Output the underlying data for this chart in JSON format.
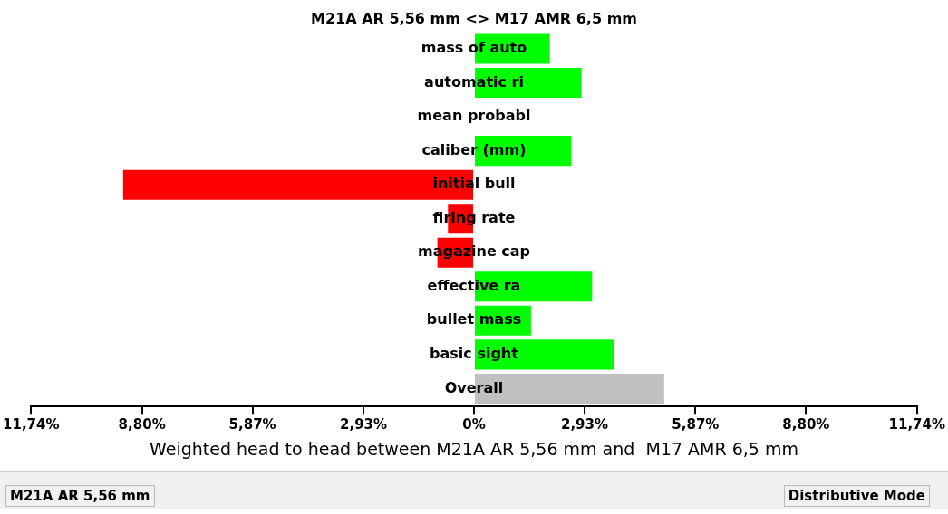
{
  "chart_data": {
    "type": "bar",
    "orientation": "horizontal",
    "title": "M21A AR 5,56 mm <> M17 AMR 6,5 mm",
    "xlabel": "Weighted head to head between M21A AR 5,56 mm and  M17 AMR 6,5 mm",
    "categories": [
      "mass of auto",
      "automatic ri",
      "mean probabl",
      "caliber (mm)",
      "initial bull",
      "firing rate",
      "magazine cap",
      "effective ra",
      "bullet mass",
      "basic sight",
      "Overall"
    ],
    "values": [
      2.01,
      2.85,
      0,
      2.58,
      -9.3,
      -0.69,
      -0.97,
      3.13,
      1.51,
      3.72,
      5.04
    ],
    "colors": [
      "#00ff00",
      "#00ff00",
      "#00ff00",
      "#00ff00",
      "#ff0000",
      "#ff0000",
      "#ff0000",
      "#00ff00",
      "#00ff00",
      "#00ff00",
      "#c0c0c0"
    ],
    "xlim": [
      -11.74,
      11.74
    ],
    "xticks": [
      {
        "value": -11.74,
        "label": "11,74%"
      },
      {
        "value": -8.8,
        "label": "8,80%"
      },
      {
        "value": -5.87,
        "label": "5,87%"
      },
      {
        "value": -2.93,
        "label": "2,93%"
      },
      {
        "value": 0,
        "label": "0%"
      },
      {
        "value": 2.93,
        "label": "2,93%"
      },
      {
        "value": 5.87,
        "label": "5,87%"
      },
      {
        "value": 8.8,
        "label": "8,80%"
      },
      {
        "value": 11.74,
        "label": "11,74%"
      }
    ],
    "grid": false,
    "legend": false,
    "annotations": [
      "M21A AR 5,56 mm",
      "Distributive Mode"
    ]
  }
}
